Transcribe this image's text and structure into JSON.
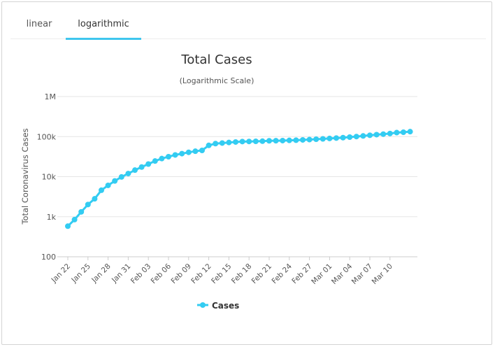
{
  "tabs": [
    {
      "label": "linear",
      "active": false
    },
    {
      "label": "logarithmic",
      "active": true
    }
  ],
  "colors": {
    "series": "#33ccf2",
    "active_tab": "#3fc6ee",
    "grid": "#e6e6e6"
  },
  "chart_data": {
    "type": "line",
    "title": "Total Cases",
    "subtitle": "(Logarithmic Scale)",
    "ylabel": "Total Coronavirus Cases",
    "xlabel": "",
    "y_scale": "log",
    "ylim": [
      100,
      1000000
    ],
    "y_ticks": [
      "100",
      "1k",
      "10k",
      "100k",
      "1M"
    ],
    "x_ticks": [
      "Jan 22",
      "Jan 25",
      "Jan 28",
      "Jan 31",
      "Feb 03",
      "Feb 06",
      "Feb 09",
      "Feb 12",
      "Feb 15",
      "Feb 18",
      "Feb 21",
      "Feb 24",
      "Feb 27",
      "Mar 01",
      "Mar 04",
      "Mar 07",
      "Mar 10"
    ],
    "legend": "bottom-center",
    "grid": true,
    "series": [
      {
        "name": "Cases",
        "dates": [
          "Jan 22",
          "Jan 23",
          "Jan 24",
          "Jan 25",
          "Jan 26",
          "Jan 27",
          "Jan 28",
          "Jan 29",
          "Jan 30",
          "Jan 31",
          "Feb 01",
          "Feb 02",
          "Feb 03",
          "Feb 04",
          "Feb 05",
          "Feb 06",
          "Feb 07",
          "Feb 08",
          "Feb 09",
          "Feb 10",
          "Feb 11",
          "Feb 12",
          "Feb 13",
          "Feb 14",
          "Feb 15",
          "Feb 16",
          "Feb 17",
          "Feb 18",
          "Feb 19",
          "Feb 20",
          "Feb 21",
          "Feb 22",
          "Feb 23",
          "Feb 24",
          "Feb 25",
          "Feb 26",
          "Feb 27",
          "Feb 28",
          "Feb 29",
          "Mar 01",
          "Mar 02",
          "Mar 03",
          "Mar 04",
          "Mar 05",
          "Mar 06",
          "Mar 07",
          "Mar 08",
          "Mar 09",
          "Mar 10",
          "Mar 11",
          "Mar 12",
          "Mar 13"
        ],
        "values": [
          580,
          845,
          1320,
          2015,
          2800,
          4580,
          6060,
          7820,
          9830,
          11950,
          14560,
          17390,
          20630,
          24550,
          28280,
          31480,
          34880,
          37560,
          40550,
          43100,
          45170,
          60370,
          66890,
          69030,
          71230,
          73270,
          75150,
          75650,
          76200,
          76840,
          78600,
          78990,
          79540,
          80400,
          81380,
          82740,
          84120,
          86000,
          87700,
          89880,
          92000,
          94200,
          97000,
          100200,
          104000,
          108100,
          111800,
          115300,
          119400,
          125800,
          128500,
          133000
        ]
      }
    ]
  }
}
